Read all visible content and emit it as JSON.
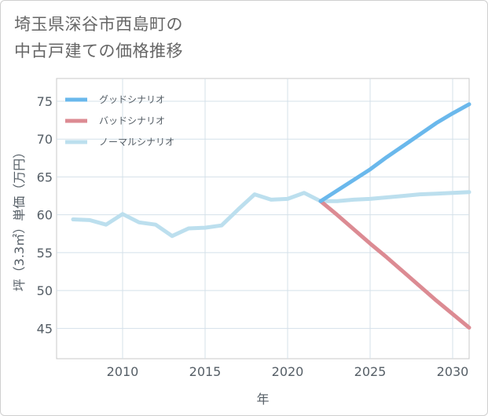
{
  "header": {
    "title_line1": "埼玉県深谷市西島町の",
    "title_line2": "中古戸建ての価格推移"
  },
  "chart_data": {
    "type": "line",
    "title": "埼玉県深谷市西島町の中古戸建ての価格推移",
    "xlabel": "年",
    "ylabel": "坪（3.3㎡）単価（万円）",
    "xlim": [
      2006,
      2031
    ],
    "ylim": [
      41,
      78
    ],
    "x_ticks": [
      2010,
      2015,
      2020,
      2025,
      2030
    ],
    "y_ticks": [
      45,
      50,
      55,
      60,
      65,
      70,
      75
    ],
    "grid": true,
    "legend_position": "top-left",
    "series": [
      {
        "name": "グッドシナリオ",
        "color": "#6ab8ec",
        "x": [
          2022,
          2023,
          2024,
          2025,
          2026,
          2027,
          2028,
          2029,
          2030,
          2031
        ],
        "values": [
          61.8,
          63.2,
          64.6,
          66.0,
          67.6,
          69.1,
          70.6,
          72.1,
          73.4,
          74.6
        ]
      },
      {
        "name": "バッドシナリオ",
        "color": "#dc8b93",
        "x": [
          2022,
          2023,
          2024,
          2025,
          2026,
          2027,
          2028,
          2029,
          2030,
          2031
        ],
        "values": [
          61.8,
          60.0,
          58.1,
          56.2,
          54.4,
          52.5,
          50.6,
          48.7,
          46.9,
          45.1
        ]
      },
      {
        "name": "ノーマルシナリオ",
        "color": "#bcdfee",
        "x": [
          2007,
          2008,
          2009,
          2010,
          2011,
          2012,
          2013,
          2014,
          2015,
          2016,
          2017,
          2018,
          2019,
          2020,
          2021,
          2022,
          2023,
          2024,
          2025,
          2026,
          2027,
          2028,
          2029,
          2030,
          2031
        ],
        "values": [
          59.4,
          59.3,
          58.7,
          60.1,
          59.0,
          58.7,
          57.2,
          58.2,
          58.3,
          58.6,
          60.7,
          62.7,
          62.0,
          62.1,
          62.9,
          61.8,
          61.8,
          62.0,
          62.1,
          62.3,
          62.5,
          62.7,
          62.8,
          62.9,
          63.0
        ]
      }
    ]
  }
}
